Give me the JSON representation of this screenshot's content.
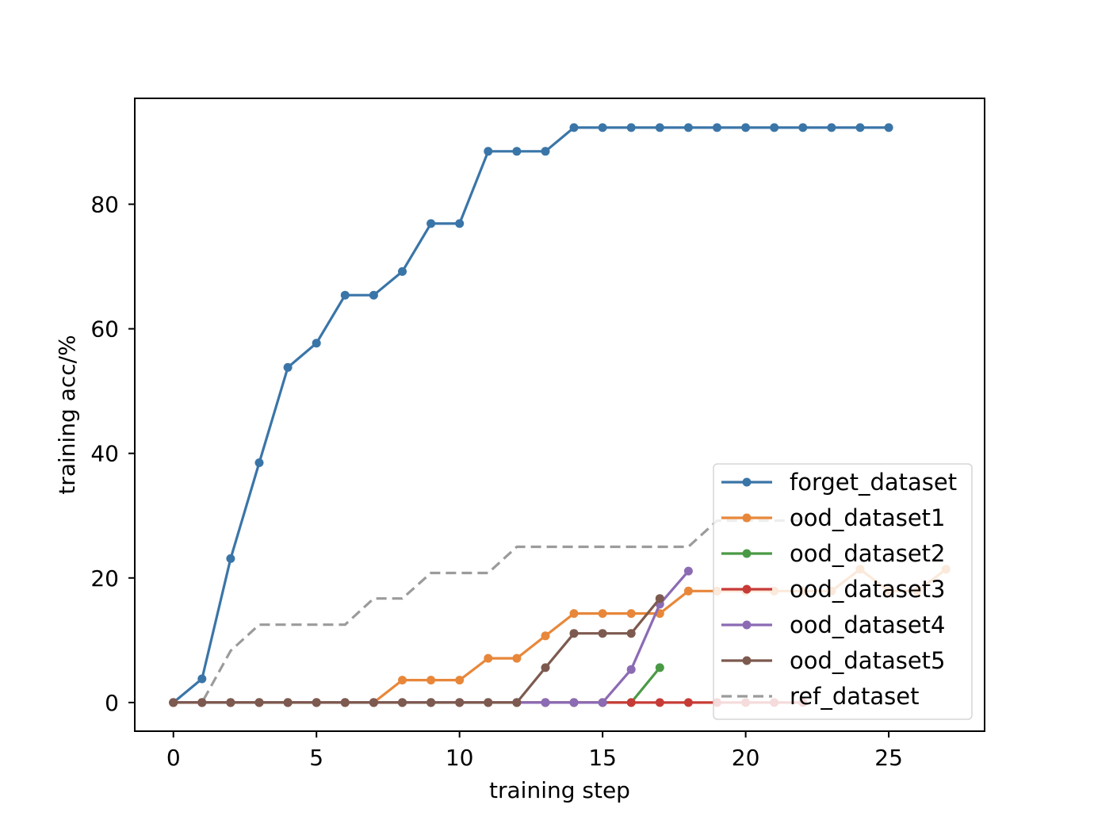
{
  "chart_data": {
    "type": "line",
    "title": "",
    "xlabel": "training step",
    "ylabel": "training acc/%",
    "xlim": [
      -1.35,
      28.35
    ],
    "ylim": [
      -4.6,
      97
    ],
    "x_ticks": [
      0,
      5,
      10,
      15,
      20,
      25
    ],
    "y_ticks": [
      0,
      20,
      40,
      60,
      80
    ],
    "grid": false,
    "legend_position": "lower right",
    "series": [
      {
        "name": "forget_dataset",
        "color": "#3a75a8",
        "style": "solid-marker",
        "x": [
          0,
          1,
          2,
          3,
          4,
          5,
          6,
          7,
          8,
          9,
          10,
          11,
          12,
          13,
          14,
          15,
          16,
          17,
          18,
          19,
          20,
          21,
          22,
          23,
          24,
          25
        ],
        "y": [
          0,
          3.8,
          23.1,
          38.5,
          53.8,
          57.7,
          65.4,
          65.4,
          69.2,
          76.9,
          76.9,
          88.5,
          88.5,
          88.5,
          92.3,
          92.3,
          92.3,
          92.3,
          92.3,
          92.3,
          92.3,
          92.3,
          92.3,
          92.3,
          92.3,
          92.3
        ]
      },
      {
        "name": "ood_dataset1",
        "color": "#e8873a",
        "style": "solid-marker",
        "x": [
          0,
          1,
          2,
          3,
          4,
          5,
          6,
          7,
          8,
          9,
          10,
          11,
          12,
          13,
          14,
          15,
          16,
          17,
          18,
          19,
          20,
          21,
          22,
          23,
          24,
          25,
          26,
          27
        ],
        "y": [
          0,
          0,
          0,
          0,
          0,
          0,
          0,
          0,
          3.6,
          3.6,
          3.6,
          7.1,
          7.1,
          10.7,
          14.3,
          14.3,
          14.3,
          14.3,
          17.9,
          17.9,
          17.9,
          17.9,
          17.9,
          17.9,
          21.4,
          17.9,
          17.9,
          21.4
        ]
      },
      {
        "name": "ood_dataset2",
        "color": "#4a9a45",
        "style": "solid-marker",
        "x": [
          0,
          1,
          2,
          3,
          4,
          5,
          6,
          7,
          8,
          9,
          10,
          11,
          12,
          13,
          14,
          15,
          16,
          17
        ],
        "y": [
          0,
          0,
          0,
          0,
          0,
          0,
          0,
          0,
          0,
          0,
          0,
          0,
          0,
          0,
          0,
          0,
          0,
          5.6
        ]
      },
      {
        "name": "ood_dataset3",
        "color": "#c73b37",
        "style": "solid-marker",
        "x": [
          0,
          1,
          2,
          3,
          4,
          5,
          6,
          7,
          8,
          9,
          10,
          11,
          12,
          13,
          14,
          15,
          16,
          17,
          18,
          19,
          20,
          21,
          22
        ],
        "y": [
          0,
          0,
          0,
          0,
          0,
          0,
          0,
          0,
          0,
          0,
          0,
          0,
          0,
          0,
          0,
          0,
          0,
          0,
          0,
          0,
          0,
          0,
          0
        ]
      },
      {
        "name": "ood_dataset4",
        "color": "#8c6bb5",
        "style": "solid-marker",
        "x": [
          0,
          1,
          2,
          3,
          4,
          5,
          6,
          7,
          8,
          9,
          10,
          11,
          12,
          13,
          14,
          15,
          16,
          17,
          18
        ],
        "y": [
          0,
          0,
          0,
          0,
          0,
          0,
          0,
          0,
          0,
          0,
          0,
          0,
          0,
          0,
          0,
          0,
          5.3,
          15.8,
          21.1
        ]
      },
      {
        "name": "ood_dataset5",
        "color": "#7d5a4f",
        "style": "solid-marker",
        "x": [
          0,
          1,
          2,
          3,
          4,
          5,
          6,
          7,
          8,
          9,
          10,
          11,
          12,
          13,
          14,
          15,
          16,
          17
        ],
        "y": [
          0,
          0,
          0,
          0,
          0,
          0,
          0,
          0,
          0,
          0,
          0,
          0,
          0,
          5.6,
          11.1,
          11.1,
          11.1,
          16.7
        ]
      },
      {
        "name": "ref_dataset",
        "color": "#9b9b9b",
        "style": "dashed",
        "x": [
          0,
          1,
          2,
          3,
          4,
          5,
          6,
          7,
          8,
          9,
          10,
          11,
          12,
          13,
          14,
          15,
          16,
          17,
          18,
          19,
          20,
          21,
          22
        ],
        "y": [
          0,
          0,
          8.3,
          12.5,
          12.5,
          12.5,
          12.5,
          16.7,
          16.7,
          20.8,
          20.8,
          20.8,
          25,
          25,
          25,
          25,
          25,
          25,
          25,
          29.2,
          29.2,
          29.2,
          29.2
        ]
      }
    ]
  }
}
